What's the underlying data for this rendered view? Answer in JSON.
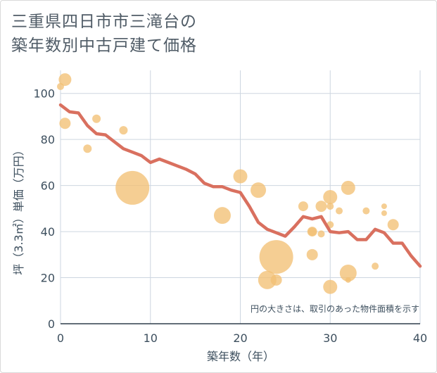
{
  "title": {
    "line1": "三重県四日市市三滝台の",
    "line2": "築年数別中古戸建て価格"
  },
  "note": "円の大きさは、取引のあった物件面積を示す",
  "colors": {
    "line": "#d9705f",
    "bubble": "#f2c075",
    "grid": "#cdd6e0",
    "text": "#3d4f5e"
  },
  "chart_data": {
    "type": "scatter",
    "xlabel": "築年数（年）",
    "ylabel": "坪（3.3㎡）単価（万円）",
    "xlim": [
      0,
      40
    ],
    "ylim": [
      0,
      110
    ],
    "x_ticks": [
      0,
      10,
      20,
      30,
      40
    ],
    "y_ticks": [
      0,
      20,
      40,
      60,
      80,
      100
    ],
    "grid": true,
    "series": [
      {
        "type": "line",
        "x": [
          0,
          1,
          2,
          3,
          4,
          5,
          6,
          7,
          8,
          9,
          10,
          11,
          12,
          13,
          14,
          15,
          16,
          17,
          18,
          19,
          20,
          21,
          22,
          23,
          24,
          25,
          26,
          27,
          28,
          29,
          30,
          31,
          32,
          33,
          34,
          35,
          36,
          37,
          38,
          39,
          40
        ],
        "y": [
          95,
          92,
          91.5,
          86,
          82.5,
          82,
          79,
          76,
          74.5,
          73,
          70,
          71.5,
          70,
          68.5,
          67,
          65,
          61,
          59.5,
          59.5,
          58,
          57,
          51,
          44,
          41,
          39.5,
          38,
          42,
          46.5,
          45.5,
          46.5,
          40,
          39.5,
          40,
          36.5,
          36.5,
          41,
          39.5,
          35,
          35,
          29.5,
          25
        ]
      },
      {
        "type": "bubble",
        "points": [
          {
            "x": 0,
            "y": 103,
            "size": 5
          },
          {
            "x": 0.5,
            "y": 106,
            "size": 9
          },
          {
            "x": 0.5,
            "y": 87,
            "size": 8
          },
          {
            "x": 3,
            "y": 76,
            "size": 6
          },
          {
            "x": 4,
            "y": 89,
            "size": 6
          },
          {
            "x": 7,
            "y": 84,
            "size": 6
          },
          {
            "x": 8,
            "y": 59,
            "size": 24
          },
          {
            "x": 18,
            "y": 47,
            "size": 12
          },
          {
            "x": 20,
            "y": 64,
            "size": 10
          },
          {
            "x": 22,
            "y": 58,
            "size": 11
          },
          {
            "x": 23,
            "y": 19,
            "size": 13
          },
          {
            "x": 24,
            "y": 29,
            "size": 24
          },
          {
            "x": 24,
            "y": 19,
            "size": 8
          },
          {
            "x": 27,
            "y": 51,
            "size": 7
          },
          {
            "x": 28,
            "y": 40,
            "size": 7
          },
          {
            "x": 28,
            "y": 40,
            "size": 6
          },
          {
            "x": 28,
            "y": 30,
            "size": 8
          },
          {
            "x": 29,
            "y": 51,
            "size": 8
          },
          {
            "x": 29,
            "y": 39,
            "size": 5
          },
          {
            "x": 30,
            "y": 55,
            "size": 10
          },
          {
            "x": 30,
            "y": 51,
            "size": 5
          },
          {
            "x": 30,
            "y": 43,
            "size": 5
          },
          {
            "x": 30,
            "y": 16,
            "size": 10
          },
          {
            "x": 31,
            "y": 49,
            "size": 5
          },
          {
            "x": 32,
            "y": 59,
            "size": 10
          },
          {
            "x": 32,
            "y": 22,
            "size": 12
          },
          {
            "x": 32,
            "y": 19,
            "size": 4
          },
          {
            "x": 34,
            "y": 49,
            "size": 5
          },
          {
            "x": 35,
            "y": 25,
            "size": 5
          },
          {
            "x": 36,
            "y": 51,
            "size": 4
          },
          {
            "x": 36,
            "y": 48,
            "size": 4
          },
          {
            "x": 37,
            "y": 43,
            "size": 8
          }
        ]
      }
    ]
  }
}
